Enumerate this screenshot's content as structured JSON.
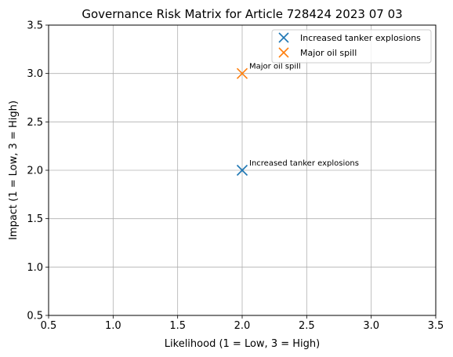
{
  "chart_data": {
    "type": "scatter",
    "title": "Governance Risk Matrix for Article 728424 2023 07 03",
    "xlabel": "Likelihood (1 = Low, 3 = High)",
    "ylabel": "Impact (1 = Low, 3 = High)",
    "xlim": [
      0.5,
      3.5
    ],
    "ylim": [
      0.5,
      3.5
    ],
    "xticks": [
      "0.5",
      "1.0",
      "1.5",
      "2.0",
      "2.5",
      "3.0",
      "3.5"
    ],
    "yticks": [
      "0.5",
      "1.0",
      "1.5",
      "2.0",
      "2.5",
      "3.0",
      "3.5"
    ],
    "grid": true,
    "legend_position": "top-right",
    "marker": "x",
    "series": [
      {
        "name": "Increased tanker explosions",
        "color": "#1f77b4",
        "points": [
          {
            "x": 2,
            "y": 2,
            "label": "Increased tanker explosions"
          }
        ]
      },
      {
        "name": "Major oil spill",
        "color": "#ff7f0e",
        "points": [
          {
            "x": 2,
            "y": 3,
            "label": "Major oil spill"
          }
        ]
      }
    ]
  }
}
